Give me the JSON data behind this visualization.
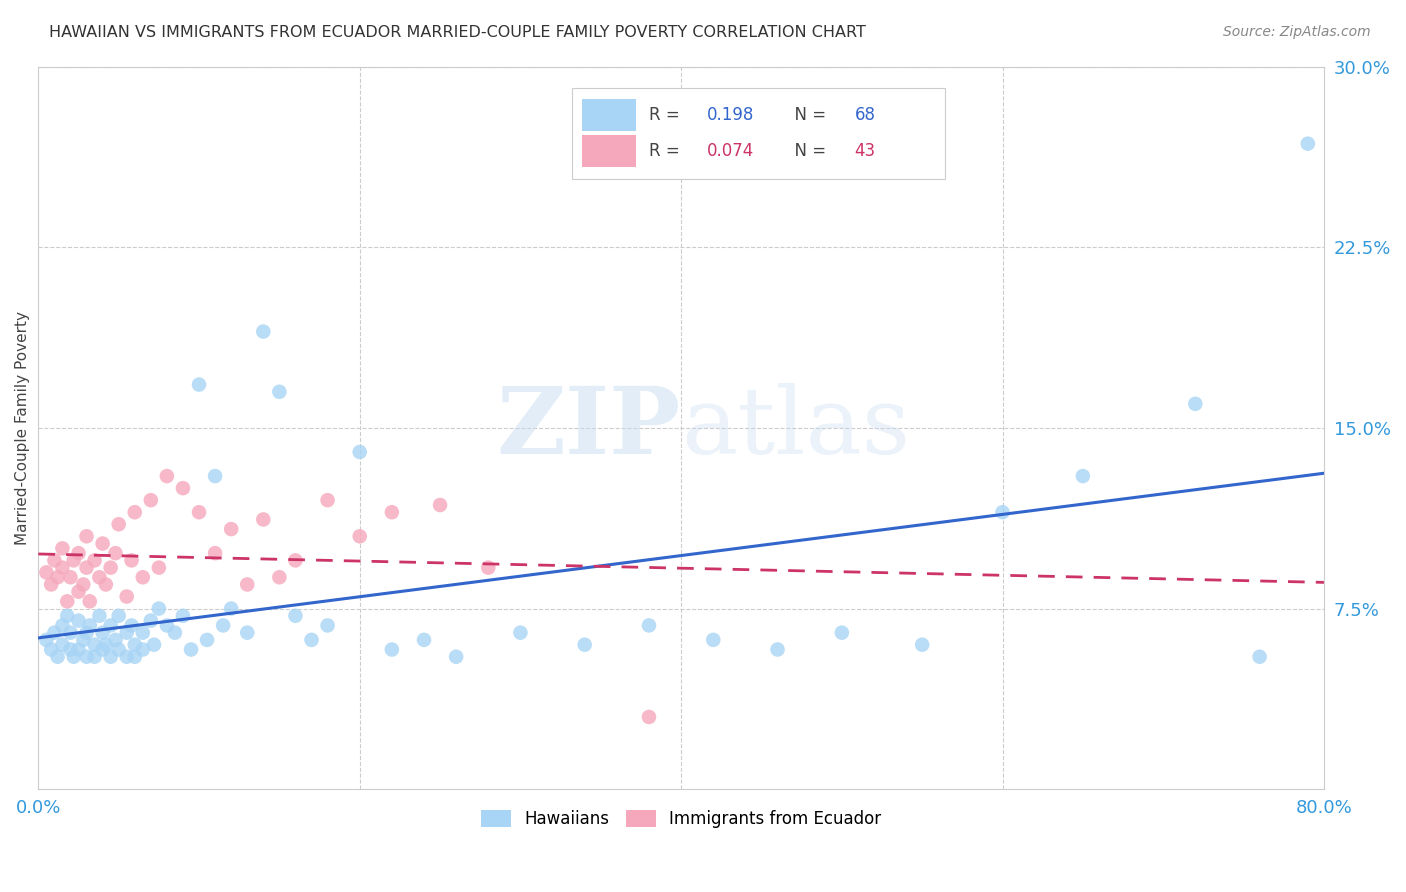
{
  "title": "HAWAIIAN VS IMMIGRANTS FROM ECUADOR MARRIED-COUPLE FAMILY POVERTY CORRELATION CHART",
  "source": "Source: ZipAtlas.com",
  "ylabel": "Married-Couple Family Poverty",
  "yticks": [
    0.0,
    0.075,
    0.15,
    0.225,
    0.3
  ],
  "ytick_labels": [
    "",
    "7.5%",
    "15.0%",
    "22.5%",
    "30.0%"
  ],
  "xlim": [
    0.0,
    0.8
  ],
  "ylim": [
    0.0,
    0.3
  ],
  "hawaiian_R": 0.198,
  "hawaiian_N": 68,
  "ecuador_R": 0.074,
  "ecuador_N": 43,
  "hawaiian_color": "#A8D4F5",
  "ecuador_color": "#F5A8BC",
  "hawaiian_line_color": "#3366CC",
  "ecuador_line_color": "#CC3366",
  "watermark_zip": "ZIP",
  "watermark_atlas": "atlas",
  "background_color": "#FFFFFF",
  "hawaiian_x": [
    0.005,
    0.008,
    0.01,
    0.012,
    0.015,
    0.015,
    0.018,
    0.02,
    0.02,
    0.022,
    0.025,
    0.025,
    0.028,
    0.03,
    0.03,
    0.032,
    0.035,
    0.035,
    0.038,
    0.04,
    0.04,
    0.042,
    0.045,
    0.045,
    0.048,
    0.05,
    0.05,
    0.055,
    0.055,
    0.058,
    0.06,
    0.06,
    0.065,
    0.065,
    0.07,
    0.072,
    0.075,
    0.08,
    0.085,
    0.09,
    0.095,
    0.1,
    0.105,
    0.11,
    0.115,
    0.12,
    0.13,
    0.14,
    0.15,
    0.16,
    0.17,
    0.18,
    0.2,
    0.22,
    0.24,
    0.26,
    0.3,
    0.34,
    0.38,
    0.42,
    0.46,
    0.5,
    0.55,
    0.6,
    0.65,
    0.72,
    0.76,
    0.79
  ],
  "hawaiian_y": [
    0.062,
    0.058,
    0.065,
    0.055,
    0.068,
    0.06,
    0.072,
    0.058,
    0.065,
    0.055,
    0.07,
    0.058,
    0.062,
    0.065,
    0.055,
    0.068,
    0.06,
    0.055,
    0.072,
    0.065,
    0.058,
    0.06,
    0.068,
    0.055,
    0.062,
    0.072,
    0.058,
    0.065,
    0.055,
    0.068,
    0.06,
    0.055,
    0.065,
    0.058,
    0.07,
    0.06,
    0.075,
    0.068,
    0.065,
    0.072,
    0.058,
    0.168,
    0.062,
    0.13,
    0.068,
    0.075,
    0.065,
    0.19,
    0.165,
    0.072,
    0.062,
    0.068,
    0.14,
    0.058,
    0.062,
    0.055,
    0.065,
    0.06,
    0.068,
    0.062,
    0.058,
    0.065,
    0.06,
    0.115,
    0.13,
    0.16,
    0.055,
    0.268
  ],
  "ecuador_x": [
    0.005,
    0.008,
    0.01,
    0.012,
    0.015,
    0.015,
    0.018,
    0.02,
    0.022,
    0.025,
    0.025,
    0.028,
    0.03,
    0.03,
    0.032,
    0.035,
    0.038,
    0.04,
    0.042,
    0.045,
    0.048,
    0.05,
    0.055,
    0.058,
    0.06,
    0.065,
    0.07,
    0.075,
    0.08,
    0.09,
    0.1,
    0.11,
    0.12,
    0.13,
    0.14,
    0.15,
    0.16,
    0.18,
    0.2,
    0.22,
    0.25,
    0.28,
    0.38
  ],
  "ecuador_y": [
    0.09,
    0.085,
    0.095,
    0.088,
    0.092,
    0.1,
    0.078,
    0.088,
    0.095,
    0.082,
    0.098,
    0.085,
    0.092,
    0.105,
    0.078,
    0.095,
    0.088,
    0.102,
    0.085,
    0.092,
    0.098,
    0.11,
    0.08,
    0.095,
    0.115,
    0.088,
    0.12,
    0.092,
    0.13,
    0.125,
    0.115,
    0.098,
    0.108,
    0.085,
    0.112,
    0.088,
    0.095,
    0.12,
    0.105,
    0.115,
    0.118,
    0.092,
    0.03
  ]
}
